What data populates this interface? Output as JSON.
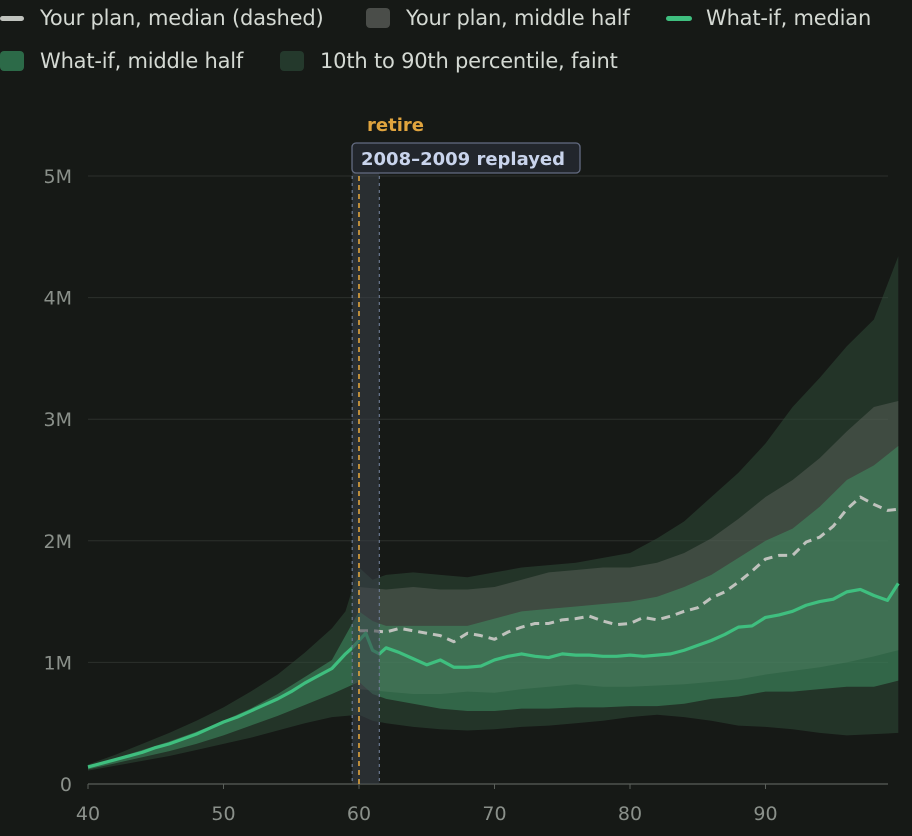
{
  "legend": {
    "row1": [
      {
        "label": "Your plan, median (dashed)",
        "kind": "line",
        "color": "#bfc2bd",
        "icon": "dashed-line-swatch-icon"
      },
      {
        "label": "Your plan, middle half",
        "kind": "box",
        "color": "#4a4d49",
        "icon": "gray-box-swatch-icon"
      },
      {
        "label": "What-if, median",
        "kind": "line",
        "color": "#3fbf7f",
        "icon": "green-line-swatch-icon"
      }
    ],
    "row2": [
      {
        "label": "What-if, middle half",
        "kind": "box",
        "color": "#2c6a48",
        "icon": "green-box-swatch-icon"
      },
      {
        "label": "10th to 90th percentile, faint",
        "kind": "box",
        "color": "#24392c",
        "icon": "faint-box-swatch-icon"
      }
    ]
  },
  "annotations": {
    "retire_label": "retire",
    "retire_age": 60,
    "replay_label": "2008–2009 replayed",
    "replay_range": [
      59.5,
      61.5
    ]
  },
  "chart_data": {
    "type": "area",
    "xlim": [
      40,
      99
    ],
    "ylim": [
      0,
      5000000
    ],
    "grid": true,
    "x_ticks": [
      {
        "v": 40,
        "label": "40"
      },
      {
        "v": 50,
        "label": "50"
      },
      {
        "v": 60,
        "label": "60"
      },
      {
        "v": 70,
        "label": "70"
      },
      {
        "v": 80,
        "label": "80"
      },
      {
        "v": 90,
        "label": "90"
      }
    ],
    "y_ticks": [
      {
        "v": 0,
        "label": "0"
      },
      {
        "v": 1000000,
        "label": "1M"
      },
      {
        "v": 2000000,
        "label": "2M"
      },
      {
        "v": 3000000,
        "label": "3M"
      },
      {
        "v": 4000000,
        "label": "4M"
      },
      {
        "v": 5000000,
        "label": "5M"
      }
    ],
    "series": [
      {
        "name": "Your plan, median (dashed)",
        "color": "#bfc2bd",
        "points": [
          [
            60,
            1.26
          ],
          [
            61,
            1.26
          ],
          [
            62,
            1.25
          ],
          [
            63,
            1.28
          ],
          [
            64,
            1.26
          ],
          [
            65,
            1.24
          ],
          [
            66,
            1.22
          ],
          [
            67,
            1.17
          ],
          [
            68,
            1.24
          ],
          [
            69,
            1.22
          ],
          [
            70,
            1.19
          ],
          [
            71,
            1.25
          ],
          [
            72,
            1.29
          ],
          [
            73,
            1.32
          ],
          [
            74,
            1.32
          ],
          [
            75,
            1.35
          ],
          [
            76,
            1.36
          ],
          [
            77,
            1.38
          ],
          [
            78,
            1.34
          ],
          [
            79,
            1.31
          ],
          [
            80,
            1.32
          ],
          [
            81,
            1.37
          ],
          [
            82,
            1.35
          ],
          [
            83,
            1.38
          ],
          [
            84,
            1.42
          ],
          [
            85,
            1.45
          ],
          [
            86,
            1.53
          ],
          [
            87,
            1.58
          ],
          [
            88,
            1.66
          ],
          [
            89,
            1.75
          ],
          [
            90,
            1.85
          ],
          [
            91,
            1.88
          ],
          [
            92,
            1.88
          ],
          [
            93,
            1.99
          ],
          [
            94,
            2.03
          ],
          [
            95,
            2.12
          ],
          [
            96,
            2.26
          ],
          [
            97,
            2.36
          ],
          [
            98,
            2.3
          ],
          [
            99,
            2.25
          ],
          [
            99.8,
            2.26
          ]
        ]
      },
      {
        "name": "Your plan, middle half",
        "color": "#4a4d49",
        "lower": [
          [
            60,
            0.78
          ],
          [
            62,
            0.76
          ],
          [
            64,
            0.74
          ],
          [
            66,
            0.74
          ],
          [
            68,
            0.76
          ],
          [
            70,
            0.75
          ],
          [
            72,
            0.78
          ],
          [
            74,
            0.8
          ],
          [
            76,
            0.82
          ],
          [
            78,
            0.8
          ],
          [
            80,
            0.8
          ],
          [
            82,
            0.81
          ],
          [
            84,
            0.82
          ],
          [
            86,
            0.84
          ],
          [
            88,
            0.86
          ],
          [
            90,
            0.9
          ],
          [
            92,
            0.93
          ],
          [
            94,
            0.96
          ],
          [
            96,
            1.0
          ],
          [
            98,
            1.05
          ],
          [
            99.8,
            1.1
          ]
        ],
        "upper": [
          [
            60,
            1.62
          ],
          [
            62,
            1.6
          ],
          [
            64,
            1.62
          ],
          [
            66,
            1.6
          ],
          [
            68,
            1.6
          ],
          [
            70,
            1.62
          ],
          [
            72,
            1.68
          ],
          [
            74,
            1.74
          ],
          [
            76,
            1.76
          ],
          [
            78,
            1.78
          ],
          [
            80,
            1.78
          ],
          [
            82,
            1.82
          ],
          [
            84,
            1.9
          ],
          [
            86,
            2.02
          ],
          [
            88,
            2.18
          ],
          [
            90,
            2.36
          ],
          [
            92,
            2.5
          ],
          [
            94,
            2.68
          ],
          [
            96,
            2.9
          ],
          [
            98,
            3.1
          ],
          [
            99.8,
            3.15
          ]
        ]
      },
      {
        "name": "What-if, median",
        "color": "#3fbf7f",
        "points": [
          [
            40,
            0.14
          ],
          [
            41,
            0.17
          ],
          [
            42,
            0.2
          ],
          [
            43,
            0.23
          ],
          [
            44,
            0.26
          ],
          [
            45,
            0.3
          ],
          [
            46,
            0.33
          ],
          [
            47,
            0.37
          ],
          [
            48,
            0.41
          ],
          [
            49,
            0.46
          ],
          [
            50,
            0.51
          ],
          [
            51,
            0.55
          ],
          [
            52,
            0.6
          ],
          [
            53,
            0.65
          ],
          [
            54,
            0.7
          ],
          [
            55,
            0.76
          ],
          [
            56,
            0.83
          ],
          [
            57,
            0.89
          ],
          [
            58,
            0.95
          ],
          [
            59,
            1.07
          ],
          [
            59.5,
            1.12
          ],
          [
            60,
            1.18
          ],
          [
            60.5,
            1.24
          ],
          [
            61,
            1.1
          ],
          [
            61.5,
            1.07
          ],
          [
            62,
            1.12
          ],
          [
            63,
            1.08
          ],
          [
            64,
            1.03
          ],
          [
            65,
            0.98
          ],
          [
            66,
            1.02
          ],
          [
            67,
            0.96
          ],
          [
            68,
            0.96
          ],
          [
            69,
            0.97
          ],
          [
            70,
            1.02
          ],
          [
            71,
            1.05
          ],
          [
            72,
            1.07
          ],
          [
            73,
            1.05
          ],
          [
            74,
            1.04
          ],
          [
            75,
            1.07
          ],
          [
            76,
            1.06
          ],
          [
            77,
            1.06
          ],
          [
            78,
            1.05
          ],
          [
            79,
            1.05
          ],
          [
            80,
            1.06
          ],
          [
            81,
            1.05
          ],
          [
            82,
            1.06
          ],
          [
            83,
            1.07
          ],
          [
            84,
            1.1
          ],
          [
            85,
            1.14
          ],
          [
            86,
            1.18
          ],
          [
            87,
            1.23
          ],
          [
            88,
            1.29
          ],
          [
            89,
            1.3
          ],
          [
            90,
            1.37
          ],
          [
            91,
            1.39
          ],
          [
            92,
            1.42
          ],
          [
            93,
            1.47
          ],
          [
            94,
            1.5
          ],
          [
            95,
            1.52
          ],
          [
            96,
            1.58
          ],
          [
            97,
            1.6
          ],
          [
            98,
            1.55
          ],
          [
            99,
            1.51
          ],
          [
            99.8,
            1.65
          ]
        ]
      },
      {
        "name": "What-if, middle half",
        "color": "#2c6a48",
        "lower": [
          [
            40,
            0.12
          ],
          [
            42,
            0.17
          ],
          [
            44,
            0.22
          ],
          [
            46,
            0.27
          ],
          [
            48,
            0.33
          ],
          [
            50,
            0.4
          ],
          [
            52,
            0.48
          ],
          [
            54,
            0.56
          ],
          [
            56,
            0.65
          ],
          [
            58,
            0.74
          ],
          [
            60,
            0.84
          ],
          [
            61,
            0.74
          ],
          [
            62,
            0.7
          ],
          [
            64,
            0.66
          ],
          [
            66,
            0.62
          ],
          [
            68,
            0.6
          ],
          [
            70,
            0.6
          ],
          [
            72,
            0.62
          ],
          [
            74,
            0.62
          ],
          [
            76,
            0.63
          ],
          [
            78,
            0.63
          ],
          [
            80,
            0.64
          ],
          [
            82,
            0.64
          ],
          [
            84,
            0.66
          ],
          [
            86,
            0.7
          ],
          [
            88,
            0.72
          ],
          [
            90,
            0.76
          ],
          [
            92,
            0.76
          ],
          [
            94,
            0.78
          ],
          [
            96,
            0.8
          ],
          [
            98,
            0.8
          ],
          [
            99.8,
            0.85
          ]
        ],
        "upper": [
          [
            40,
            0.15
          ],
          [
            42,
            0.21
          ],
          [
            44,
            0.28
          ],
          [
            46,
            0.35
          ],
          [
            48,
            0.43
          ],
          [
            50,
            0.52
          ],
          [
            52,
            0.62
          ],
          [
            54,
            0.74
          ],
          [
            56,
            0.88
          ],
          [
            58,
            1.02
          ],
          [
            60,
            1.42
          ],
          [
            61,
            1.34
          ],
          [
            62,
            1.3
          ],
          [
            64,
            1.3
          ],
          [
            66,
            1.3
          ],
          [
            68,
            1.3
          ],
          [
            70,
            1.36
          ],
          [
            72,
            1.42
          ],
          [
            74,
            1.44
          ],
          [
            76,
            1.46
          ],
          [
            78,
            1.48
          ],
          [
            80,
            1.5
          ],
          [
            82,
            1.54
          ],
          [
            84,
            1.62
          ],
          [
            86,
            1.72
          ],
          [
            88,
            1.86
          ],
          [
            90,
            2.0
          ],
          [
            92,
            2.1
          ],
          [
            94,
            2.28
          ],
          [
            96,
            2.5
          ],
          [
            98,
            2.62
          ],
          [
            99.8,
            2.78
          ]
        ]
      },
      {
        "name": "10th to 90th percentile, faint",
        "color": "#24392c",
        "lower": [
          [
            40,
            0.11
          ],
          [
            42,
            0.15
          ],
          [
            44,
            0.19
          ],
          [
            46,
            0.23
          ],
          [
            48,
            0.28
          ],
          [
            50,
            0.33
          ],
          [
            52,
            0.38
          ],
          [
            54,
            0.44
          ],
          [
            56,
            0.5
          ],
          [
            58,
            0.55
          ],
          [
            60,
            0.57
          ],
          [
            61,
            0.52
          ],
          [
            62,
            0.5
          ],
          [
            64,
            0.47
          ],
          [
            66,
            0.45
          ],
          [
            68,
            0.44
          ],
          [
            70,
            0.45
          ],
          [
            72,
            0.47
          ],
          [
            74,
            0.48
          ],
          [
            76,
            0.5
          ],
          [
            78,
            0.52
          ],
          [
            80,
            0.55
          ],
          [
            82,
            0.57
          ],
          [
            84,
            0.55
          ],
          [
            86,
            0.52
          ],
          [
            88,
            0.48
          ],
          [
            90,
            0.47
          ],
          [
            92,
            0.45
          ],
          [
            94,
            0.42
          ],
          [
            96,
            0.4
          ],
          [
            98,
            0.41
          ],
          [
            99.8,
            0.42
          ]
        ],
        "upper": [
          [
            40,
            0.16
          ],
          [
            42,
            0.24
          ],
          [
            44,
            0.33
          ],
          [
            46,
            0.42
          ],
          [
            48,
            0.52
          ],
          [
            50,
            0.63
          ],
          [
            52,
            0.76
          ],
          [
            54,
            0.9
          ],
          [
            56,
            1.08
          ],
          [
            58,
            1.28
          ],
          [
            59,
            1.42
          ],
          [
            60,
            1.78
          ],
          [
            61,
            1.68
          ],
          [
            62,
            1.72
          ],
          [
            64,
            1.74
          ],
          [
            66,
            1.72
          ],
          [
            68,
            1.7
          ],
          [
            70,
            1.74
          ],
          [
            72,
            1.78
          ],
          [
            74,
            1.8
          ],
          [
            76,
            1.82
          ],
          [
            78,
            1.86
          ],
          [
            80,
            1.9
          ],
          [
            82,
            2.02
          ],
          [
            84,
            2.16
          ],
          [
            86,
            2.36
          ],
          [
            88,
            2.56
          ],
          [
            90,
            2.8
          ],
          [
            92,
            3.1
          ],
          [
            94,
            3.34
          ],
          [
            96,
            3.6
          ],
          [
            98,
            3.82
          ],
          [
            99.8,
            4.34
          ]
        ]
      }
    ]
  }
}
